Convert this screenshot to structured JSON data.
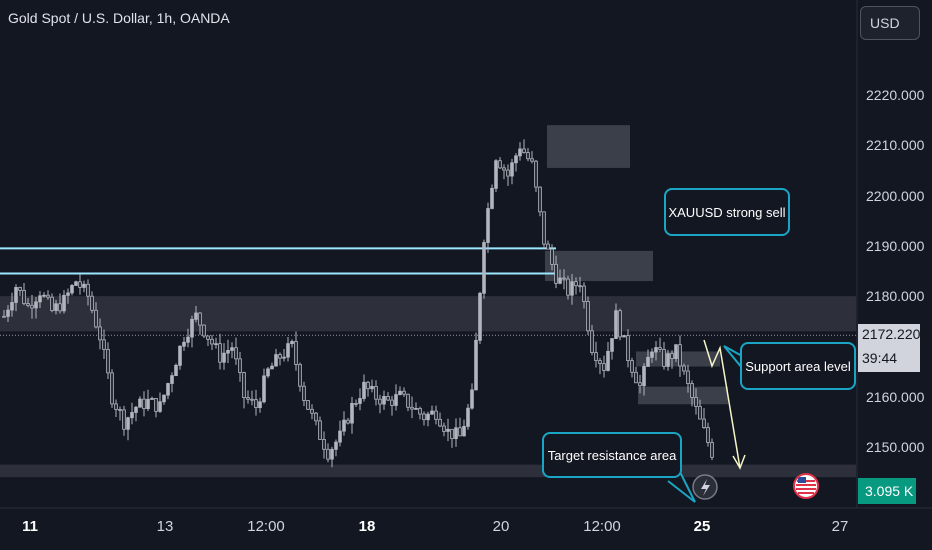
{
  "header": {
    "title": "Gold Spot / U.S. Dollar, 1h, OANDA",
    "currency": "USD"
  },
  "price_axis": {
    "labels": [
      "2220.000",
      "2210.000",
      "2200.000",
      "2190.000",
      "2180.000",
      "2160.000",
      "2150.000"
    ]
  },
  "time_axis": {
    "labels": [
      {
        "text": "11",
        "bold": true
      },
      {
        "text": "13",
        "bold": false
      },
      {
        "text": "12:00",
        "bold": false
      },
      {
        "text": "18",
        "bold": true
      },
      {
        "text": "20",
        "bold": false
      },
      {
        "text": "12:00",
        "bold": false
      },
      {
        "text": "25",
        "bold": true
      },
      {
        "text": "27",
        "bold": false
      }
    ]
  },
  "current_price": {
    "value": "2172.220",
    "countdown": "39:44"
  },
  "volume_label": "3.095 K",
  "annotations": {
    "sell_note": "XAUUSD strong sell",
    "support_note": "Support area level",
    "target_note": "Target resistance area"
  },
  "colors": {
    "background": "#131722",
    "candle": "#b2b5be",
    "horizontal_lines": "#9be7ff",
    "zones": "#434651",
    "callout_border": "#1ba5c4",
    "arrow": "#f5f5c8",
    "volume_badge": "#089981"
  },
  "chart_data": {
    "type": "candlestick",
    "symbol": "XAUUSD",
    "interval": "1h",
    "ylim": [
      2143,
      2232
    ],
    "price_ticks": [
      2150,
      2160,
      2180,
      2190,
      2200,
      2210,
      2220
    ],
    "current_price": 2172.22,
    "horizontal_lines": [
      2189.5,
      2184.5
    ],
    "zones": [
      {
        "from": 2173,
        "to": 2180,
        "span": "full"
      },
      {
        "from": 2144,
        "to": 2146.5,
        "span": "full"
      },
      {
        "from": 2205.5,
        "to": 2214,
        "span": "short"
      },
      {
        "from": 2183,
        "to": 2189,
        "span": "short"
      },
      {
        "from": 2166,
        "to": 2169,
        "span": "short"
      },
      {
        "from": 2158.5,
        "to": 2162,
        "span": "short"
      }
    ],
    "close_path": [
      2176,
      2182,
      2178,
      2181,
      2177,
      2179,
      2183,
      2180,
      2172,
      2160,
      2155,
      2158,
      2159,
      2158,
      2165,
      2172,
      2176,
      2172,
      2168,
      2170,
      2160,
      2158,
      2165,
      2168,
      2170,
      2160,
      2154,
      2149,
      2152,
      2158,
      2162,
      2160,
      2159,
      2160,
      2158,
      2156,
      2157,
      2153,
      2152,
      2160,
      2192,
      2208,
      2204,
      2210,
      2206,
      2191,
      2184,
      2181,
      2183,
      2170,
      2166,
      2176,
      2168,
      2162,
      2170,
      2167,
      2169,
      2162,
      2155,
      2149
    ]
  }
}
